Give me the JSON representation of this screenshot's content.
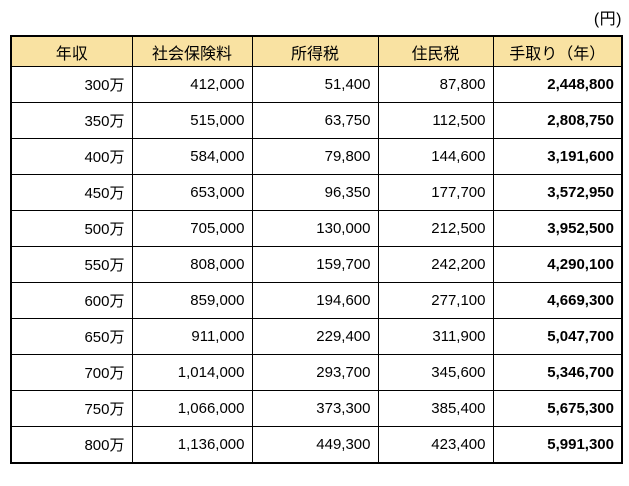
{
  "unit_label": "(円)",
  "colors": {
    "header_bg": "#f9e2a2",
    "border": "#000000",
    "text": "#000000",
    "background": "#ffffff"
  },
  "chart_data": {
    "type": "table",
    "title": "",
    "unit": "(円)",
    "columns": [
      "年収",
      "社会保険料",
      "所得税",
      "住民税",
      "手取り（年）"
    ],
    "rows": [
      [
        "300万",
        "412,000",
        "51,400",
        "87,800",
        "2,448,800"
      ],
      [
        "350万",
        "515,000",
        "63,750",
        "112,500",
        "2,808,750"
      ],
      [
        "400万",
        "584,000",
        "79,800",
        "144,600",
        "3,191,600"
      ],
      [
        "450万",
        "653,000",
        "96,350",
        "177,700",
        "3,572,950"
      ],
      [
        "500万",
        "705,000",
        "130,000",
        "212,500",
        "3,952,500"
      ],
      [
        "550万",
        "808,000",
        "159,700",
        "242,200",
        "4,290,100"
      ],
      [
        "600万",
        "859,000",
        "194,600",
        "277,100",
        "4,669,300"
      ],
      [
        "650万",
        "911,000",
        "229,400",
        "311,900",
        "5,047,700"
      ],
      [
        "700万",
        "1,014,000",
        "293,700",
        "345,600",
        "5,346,700"
      ],
      [
        "750万",
        "1,066,000",
        "373,300",
        "385,400",
        "5,675,300"
      ],
      [
        "800万",
        "1,136,000",
        "449,300",
        "423,400",
        "5,991,300"
      ]
    ],
    "layout": {
      "bold_columns": [
        4
      ],
      "number_alignment": "right",
      "header_alignment": "center",
      "grid": true
    }
  }
}
